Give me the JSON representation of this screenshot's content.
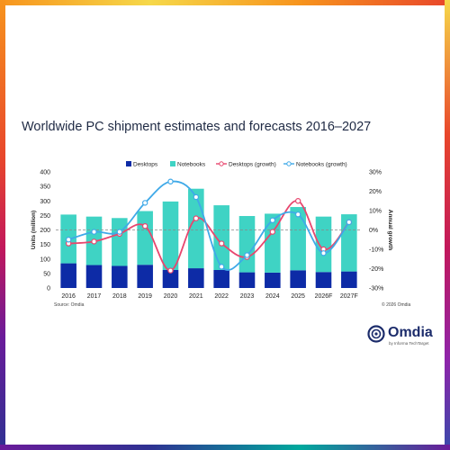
{
  "title": "Worldwide PC shipment estimates and forecasts 2016–2027",
  "source": "Source: Omdia",
  "copyright": "© 2026 Omdia",
  "logo": {
    "name": "Omdia",
    "tagline": "by Informa TechTarget"
  },
  "colors": {
    "desktops": "#0d2ba6",
    "notebooks": "#3fd3c4",
    "desktops_growth": "#e8466e",
    "notebooks_growth": "#3fa9e8",
    "zero_line": "#888888",
    "frame_accent": "#f7941d"
  },
  "chart_data": {
    "type": "bar",
    "stacked": true,
    "categories": [
      "2016",
      "2017",
      "2018",
      "2019",
      "2020",
      "2021",
      "2022",
      "2023",
      "2024",
      "2025",
      "2026F",
      "2027F"
    ],
    "series": [
      {
        "name": "Desktops",
        "type": "bar",
        "axis": "left",
        "values": [
          85,
          79,
          76,
          80,
          62,
          68,
          62,
          54,
          53,
          61,
          55,
          57
        ]
      },
      {
        "name": "Notebooks",
        "type": "bar",
        "axis": "left",
        "values": [
          168,
          167,
          165,
          185,
          236,
          274,
          223,
          194,
          203,
          218,
          191,
          197
        ]
      },
      {
        "name": "Desktops (growth)",
        "type": "line",
        "axis": "right",
        "values": [
          -7,
          -6,
          -2,
          2,
          -21,
          6,
          -7,
          -14,
          -1,
          15,
          -10,
          4
        ]
      },
      {
        "name": "Notebooks (growth)",
        "type": "line",
        "axis": "right",
        "values": [
          -5,
          -1,
          -1,
          14,
          25,
          17,
          -19,
          -13,
          5,
          8,
          -12,
          4
        ]
      }
    ],
    "ylabel": "Units (million)",
    "y2label": "Annual growth",
    "ylim": [
      0,
      400
    ],
    "yticks": [
      "0",
      "50",
      "100",
      "150",
      "200",
      "250",
      "300",
      "350",
      "400"
    ],
    "y2lim": [
      -30,
      30
    ],
    "y2ticks": [
      "-30%",
      "-20%",
      "-10%",
      "0%",
      "10%",
      "20%",
      "30%"
    ],
    "legend_position": "top-center",
    "grid": false
  }
}
